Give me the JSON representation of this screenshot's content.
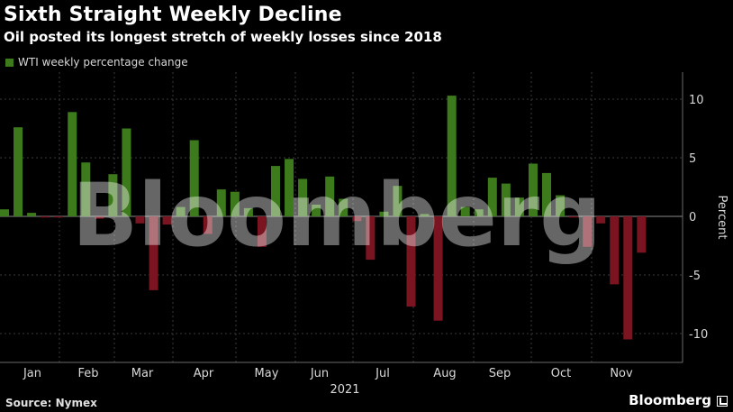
{
  "header": {
    "title": "Sixth Straight Weekly Decline",
    "subtitle": "Oil posted its longest stretch of weekly losses since 2018"
  },
  "legend_label": "WTI weekly percentage change",
  "footer": {
    "source": "Source: Nymex",
    "brand": "Bloomberg"
  },
  "watermark": "Bloomberg",
  "colors": {
    "positive": "#3d7a1c",
    "negative": "#7a1420",
    "grid": "#3a3a3a",
    "zero": "#8a8a8a"
  },
  "chart_data": {
    "type": "bar",
    "ylabel": "Percent",
    "ylim": [
      -12.5,
      12.5
    ],
    "yticks": [
      10,
      5,
      0,
      -5,
      -10
    ],
    "grid": true,
    "legend_position": "top-left",
    "year_label": "2021",
    "months": [
      "Jan",
      "Feb",
      "Mar",
      "Apr",
      "May",
      "Jun",
      "Jul",
      "Aug",
      "Sep",
      "Oct",
      "Nov"
    ],
    "series": [
      {
        "name": "WTI weekly percentage change",
        "values": [
          0.6,
          7.6,
          0.3,
          -0.1,
          -0.1,
          8.9,
          4.6,
          -0.2,
          3.6,
          7.5,
          -0.6,
          -6.3,
          -0.7,
          0.8,
          6.5,
          -1.5,
          2.3,
          2.1,
          0.7,
          -2.6,
          4.3,
          4.9,
          3.2,
          1.0,
          3.4,
          1.5,
          -0.4,
          -3.7,
          0.4,
          2.6,
          -7.7,
          0.2,
          -8.9,
          10.3,
          0.8,
          0.6,
          3.3,
          2.8,
          1.6,
          4.5,
          3.7,
          1.8,
          -0.1,
          -2.6,
          -0.6,
          -5.8,
          -10.5,
          -3.1
        ]
      }
    ]
  }
}
